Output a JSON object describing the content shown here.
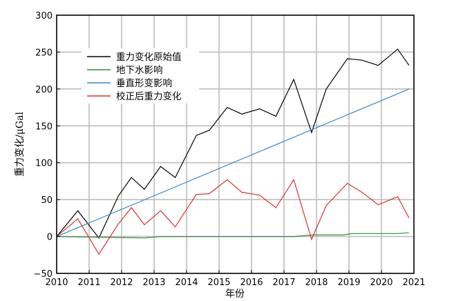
{
  "chart_data": {
    "type": "line",
    "xlabel": "年份",
    "ylabel": "重力变化/μGal",
    "xlim": [
      2010,
      2021
    ],
    "ylim": [
      -50,
      300
    ],
    "x_ticks": [
      "2010",
      "2011",
      "2012",
      "2013",
      "2014",
      "2015",
      "2016",
      "2017",
      "2018",
      "2019",
      "2020",
      "2021"
    ],
    "y_ticks": [
      "300",
      "250",
      "200",
      "150",
      "100",
      "50",
      "0",
      "−50"
    ],
    "y_tick_values": [
      300,
      250,
      200,
      150,
      100,
      50,
      0,
      -50
    ],
    "grid": true,
    "legend_position": "top-left",
    "series": [
      {
        "name": "重力变化原始值",
        "color": "#000000",
        "x": [
          2010.0,
          2010.65,
          2011.3,
          2011.9,
          2012.3,
          2012.7,
          2013.2,
          2013.65,
          2014.3,
          2014.7,
          2015.25,
          2015.7,
          2016.25,
          2016.75,
          2017.3,
          2017.85,
          2018.3,
          2018.95,
          2019.4,
          2019.9,
          2020.5,
          2020.85
        ],
        "y": [
          0,
          35,
          -2,
          55,
          80,
          64,
          95,
          80,
          137,
          144,
          175,
          166,
          173,
          163,
          213,
          141,
          200,
          241,
          239,
          232,
          254,
          232
        ]
      },
      {
        "name": "地下水影响",
        "color": "#2e8b3a",
        "x": [
          2010.0,
          2011.3,
          2012.7,
          2013.2,
          2014.3,
          2015.7,
          2017.3,
          2017.85,
          2018.8,
          2019.1,
          2020.5,
          2020.85
        ],
        "y": [
          0,
          -1,
          -2,
          0,
          0,
          0,
          0,
          2,
          2,
          4,
          4,
          5
        ]
      },
      {
        "name": "垂直形变影响",
        "color": "#3a88c4",
        "x": [
          2010.0,
          2020.85
        ],
        "y": [
          0,
          200
        ]
      },
      {
        "name": "校正后重力变化",
        "color": "#d6322e",
        "x": [
          2010.0,
          2010.65,
          2011.3,
          2011.9,
          2012.3,
          2012.7,
          2013.2,
          2013.65,
          2014.3,
          2014.7,
          2015.25,
          2015.7,
          2016.25,
          2016.75,
          2017.3,
          2017.85,
          2018.3,
          2018.95,
          2019.4,
          2019.9,
          2020.5,
          2020.85
        ],
        "y": [
          0,
          24,
          -24,
          17,
          39,
          16,
          35,
          13,
          57,
          58,
          77,
          60,
          56,
          39,
          77,
          -4,
          42,
          72,
          60,
          43,
          54,
          25
        ]
      }
    ]
  }
}
